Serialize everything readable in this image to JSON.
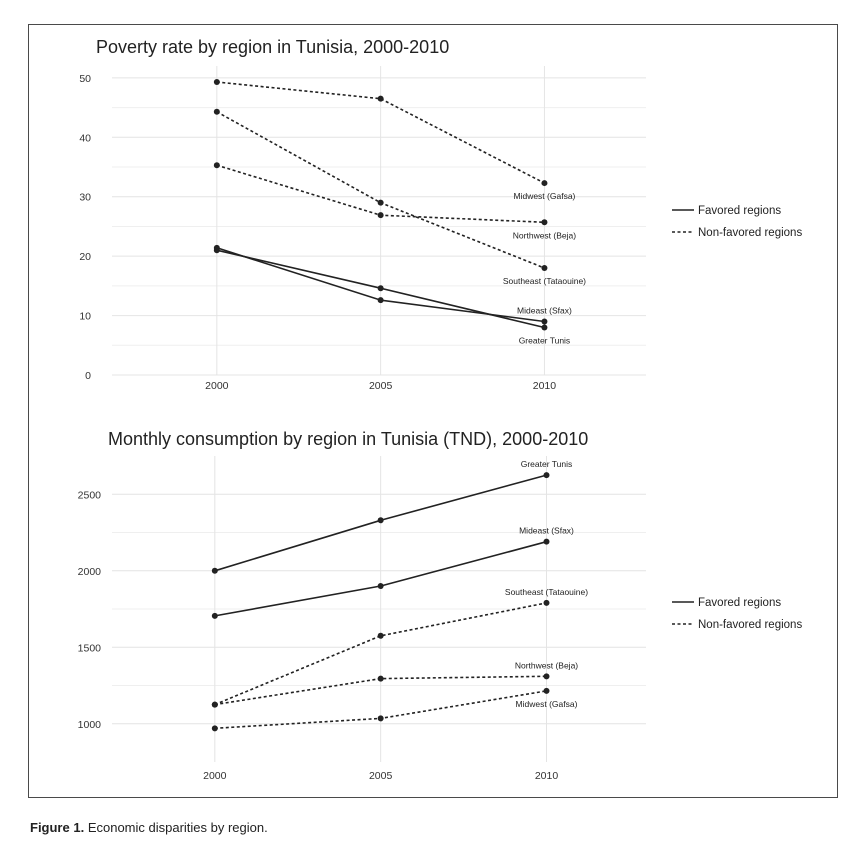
{
  "caption": {
    "figure_label": "Figure 1.",
    "text": "Economic disparities by region."
  },
  "colors": {
    "line": "#222222",
    "grid": "#e4e4e4",
    "frame": "#4a4a4a"
  },
  "chart_data": [
    {
      "type": "line",
      "title": "Poverty rate by region in Tunisia, 2000-2010",
      "xlabel": "",
      "ylabel": "",
      "x": [
        2000,
        2005,
        2010
      ],
      "x_tick_labels": [
        "2000",
        "2005",
        "2010"
      ],
      "y_ticks": [
        0,
        10,
        20,
        30,
        40,
        50
      ],
      "y_tick_labels": [
        "0",
        "10",
        "20",
        "30",
        "40",
        "50"
      ],
      "xlim": [
        1996.8,
        2013.1
      ],
      "ylim": [
        0,
        52
      ],
      "grid": true,
      "legend_position": "right",
      "legend": [
        {
          "label": "Favored regions",
          "style": "solid"
        },
        {
          "label": "Non-favored regions",
          "style": "dashed"
        }
      ],
      "series": [
        {
          "name": "Midwest (Gafsa)",
          "group": "Non-favored regions",
          "style": "dashed",
          "values": [
            49.3,
            46.5,
            32.3
          ],
          "label_offset_above": false
        },
        {
          "name": "Northwest (Beja)",
          "group": "Non-favored regions",
          "style": "dashed",
          "values": [
            35.3,
            26.9,
            25.7
          ],
          "label_offset_above": false
        },
        {
          "name": "Southeast (Tataouine)",
          "group": "Non-favored regions",
          "style": "dashed",
          "values": [
            44.3,
            29.0,
            18.0
          ],
          "label_offset_above": false
        },
        {
          "name": "Mideast (Sfax)",
          "group": "Favored regions",
          "style": "solid",
          "values": [
            21.4,
            12.6,
            9.0
          ],
          "label_offset_above": true
        },
        {
          "name": "Greater Tunis",
          "group": "Favored regions",
          "style": "solid",
          "values": [
            21.0,
            14.6,
            8.0
          ],
          "label_offset_above": false
        }
      ]
    },
    {
      "type": "line",
      "title": "Monthly consumption by region in Tunisia (TND), 2000-2010",
      "xlabel": "",
      "ylabel": "",
      "x": [
        2000,
        2005,
        2010
      ],
      "x_tick_labels": [
        "2000",
        "2005",
        "2010"
      ],
      "y_ticks": [
        1000,
        1500,
        2000,
        2500
      ],
      "y_tick_labels": [
        "1000",
        "1500",
        "2000",
        "2500"
      ],
      "xlim": [
        1996.9,
        2013.0
      ],
      "ylim": [
        750,
        2750
      ],
      "grid": true,
      "legend_position": "right",
      "legend": [
        {
          "label": "Favored regions",
          "style": "solid"
        },
        {
          "label": "Non-favored regions",
          "style": "dashed"
        }
      ],
      "series": [
        {
          "name": "Greater Tunis",
          "group": "Favored regions",
          "style": "solid",
          "values": [
            2000,
            2330,
            2625
          ],
          "label_offset_above": true
        },
        {
          "name": "Mideast (Sfax)",
          "group": "Favored regions",
          "style": "solid",
          "values": [
            1705,
            1900,
            2190
          ],
          "label_offset_above": true
        },
        {
          "name": "Southeast (Tataouine)",
          "group": "Non-favored regions",
          "style": "dashed",
          "values": [
            1125,
            1575,
            1790
          ],
          "label_offset_above": true
        },
        {
          "name": "Northwest (Beja)",
          "group": "Non-favored regions",
          "style": "dashed",
          "values": [
            1125,
            1295,
            1310
          ],
          "label_offset_above": true
        },
        {
          "name": "Midwest (Gafsa)",
          "group": "Non-favored regions",
          "style": "dashed",
          "values": [
            970,
            1035,
            1215
          ],
          "label_offset_above": false
        }
      ]
    }
  ]
}
